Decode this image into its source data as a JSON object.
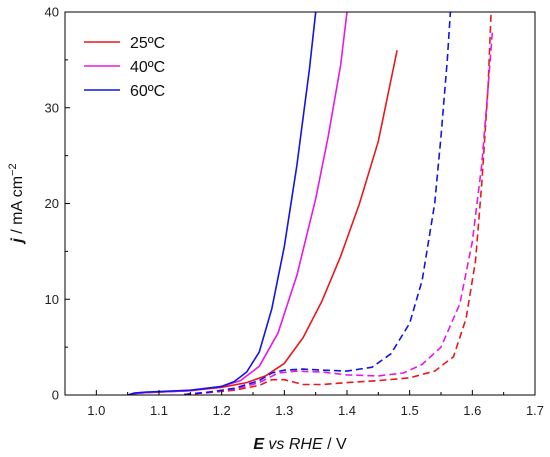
{
  "chart_data": {
    "type": "line",
    "xlabel": {
      "bold_italic": "E",
      "italic_mid": " vs RHE",
      "rest": " / V"
    },
    "ylabel": {
      "bold_italic": "j",
      "rest": " / mA cm",
      "sup": "−2"
    },
    "xlim": [
      0.95,
      1.7
    ],
    "ylim": [
      0,
      40
    ],
    "xticks": [
      1.0,
      1.1,
      1.2,
      1.3,
      1.4,
      1.5,
      1.6,
      1.7
    ],
    "xtick_labels": [
      "1.0",
      "1.1",
      "1.2",
      "1.3",
      "1.4",
      "1.5",
      "1.6",
      "1.7"
    ],
    "yticks": [
      0,
      10,
      20,
      30,
      40
    ],
    "ytick_labels": [
      "0",
      "10",
      "20",
      "30",
      "40"
    ],
    "grid": false,
    "legend_position": "top-left",
    "legend": [
      "25ºC",
      "40ºC",
      "60ºC"
    ],
    "series": [
      {
        "name": "25ºC",
        "color": "#e8191c",
        "dash": "solid",
        "x": [
          1.045,
          1.05,
          1.06,
          1.08,
          1.1,
          1.15,
          1.2,
          1.24,
          1.27,
          1.3,
          1.33,
          1.36,
          1.39,
          1.42,
          1.45,
          1.48
        ],
        "y": [
          -1.0,
          0.0,
          0.15,
          0.25,
          0.3,
          0.45,
          0.8,
          1.3,
          2.0,
          3.3,
          6.0,
          9.8,
          14.5,
          20.0,
          26.5,
          36.0
        ]
      },
      {
        "name": "40ºC",
        "color": "#e619e6",
        "dash": "solid",
        "x": [
          1.045,
          1.05,
          1.06,
          1.08,
          1.1,
          1.15,
          1.2,
          1.23,
          1.26,
          1.29,
          1.32,
          1.35,
          1.37,
          1.39,
          1.4
        ],
        "y": [
          -1.0,
          0.0,
          0.15,
          0.25,
          0.3,
          0.45,
          0.9,
          1.5,
          3.0,
          6.5,
          12.5,
          20.5,
          27.0,
          34.5,
          40.0
        ]
      },
      {
        "name": "60ºC",
        "color": "#1414e6",
        "dash": "solid",
        "x": [
          1.045,
          1.05,
          1.06,
          1.08,
          1.1,
          1.15,
          1.2,
          1.22,
          1.24,
          1.26,
          1.28,
          1.3,
          1.32,
          1.34,
          1.35
        ],
        "y": [
          -1.0,
          0.0,
          0.2,
          0.3,
          0.35,
          0.5,
          0.9,
          1.4,
          2.4,
          4.5,
          9.0,
          15.5,
          24.0,
          34.0,
          40.0
        ]
      },
      {
        "name": "",
        "color": "#e8191c",
        "dash": "dashed",
        "x": [
          1.14,
          1.18,
          1.22,
          1.26,
          1.28,
          1.3,
          1.33,
          1.36,
          1.4,
          1.45,
          1.5,
          1.54,
          1.57,
          1.59,
          1.605,
          1.615,
          1.625,
          1.63
        ],
        "y": [
          0.05,
          0.25,
          0.5,
          1.0,
          1.6,
          1.6,
          1.1,
          1.1,
          1.3,
          1.5,
          1.8,
          2.5,
          4.0,
          8.0,
          14.0,
          22.0,
          32.0,
          40.0
        ]
      },
      {
        "name": "",
        "color": "#e619e6",
        "dash": "dashed",
        "x": [
          1.14,
          1.18,
          1.22,
          1.26,
          1.29,
          1.32,
          1.36,
          1.4,
          1.45,
          1.49,
          1.52,
          1.55,
          1.58,
          1.6,
          1.615,
          1.625,
          1.632
        ],
        "y": [
          0.05,
          0.3,
          0.6,
          1.3,
          2.3,
          2.5,
          2.4,
          2.1,
          2.0,
          2.3,
          3.2,
          5.0,
          9.5,
          16.0,
          24.0,
          32.0,
          38.0
        ]
      },
      {
        "name": "",
        "color": "#1414e6",
        "dash": "dashed",
        "x": [
          1.14,
          1.18,
          1.22,
          1.26,
          1.28,
          1.3,
          1.33,
          1.36,
          1.4,
          1.44,
          1.47,
          1.5,
          1.52,
          1.54,
          1.55,
          1.56,
          1.565
        ],
        "y": [
          0.05,
          0.3,
          0.7,
          1.5,
          2.3,
          2.6,
          2.7,
          2.6,
          2.5,
          2.9,
          4.3,
          7.5,
          12.0,
          20.0,
          27.0,
          35.0,
          40.0
        ]
      }
    ]
  }
}
